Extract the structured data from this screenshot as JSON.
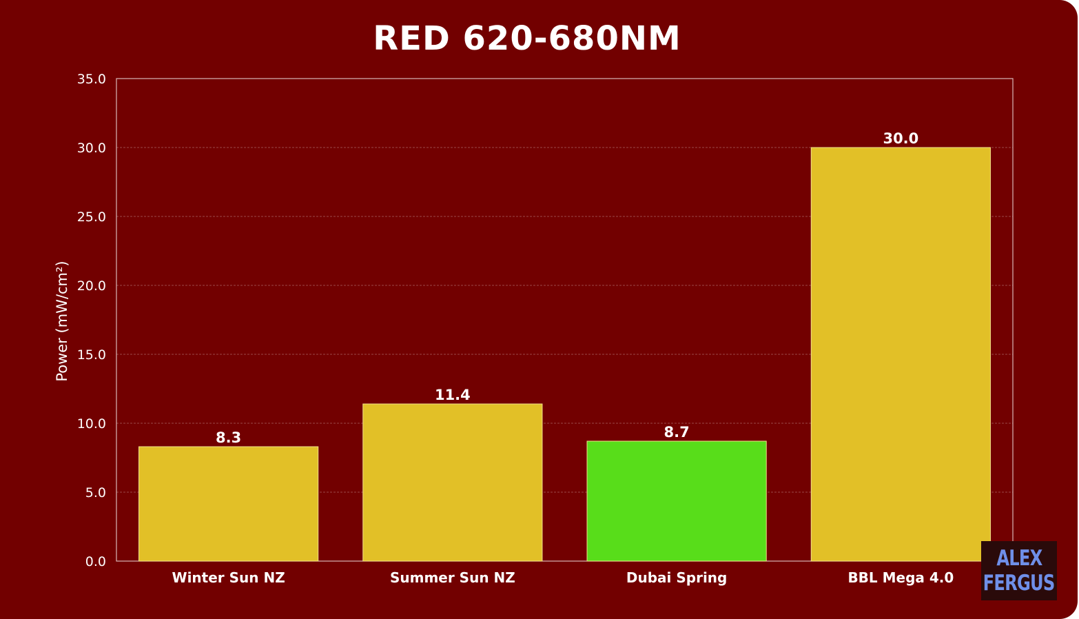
{
  "chart_data": {
    "type": "bar",
    "title": "RED 620-680NM",
    "ylabel": "Power (mW/cm²)",
    "xlabel": "",
    "categories": [
      "Winter Sun NZ",
      "Summer Sun NZ",
      "Dubai Spring",
      "BBL Mega 4.0"
    ],
    "values": [
      8.3,
      11.4,
      8.7,
      30.0
    ],
    "value_labels": [
      "8.3",
      "11.4",
      "8.7",
      "30.0"
    ],
    "bar_colors": [
      "#e2c027",
      "#e2c027",
      "#58dd1a",
      "#e2c027"
    ],
    "ylim": [
      0,
      35
    ],
    "yticks": [
      "0.0",
      "5.0",
      "10.0",
      "15.0",
      "20.0",
      "25.0",
      "30.0",
      "35.0"
    ],
    "grid": true
  },
  "colors": {
    "background": "#720000",
    "bar_default": "#e2c027",
    "bar_highlight": "#58dd1a",
    "gridline": "#9a4a4a",
    "text": "#ffffff"
  },
  "watermark": {
    "line1": "ALEX",
    "line2": "FERGUS"
  }
}
